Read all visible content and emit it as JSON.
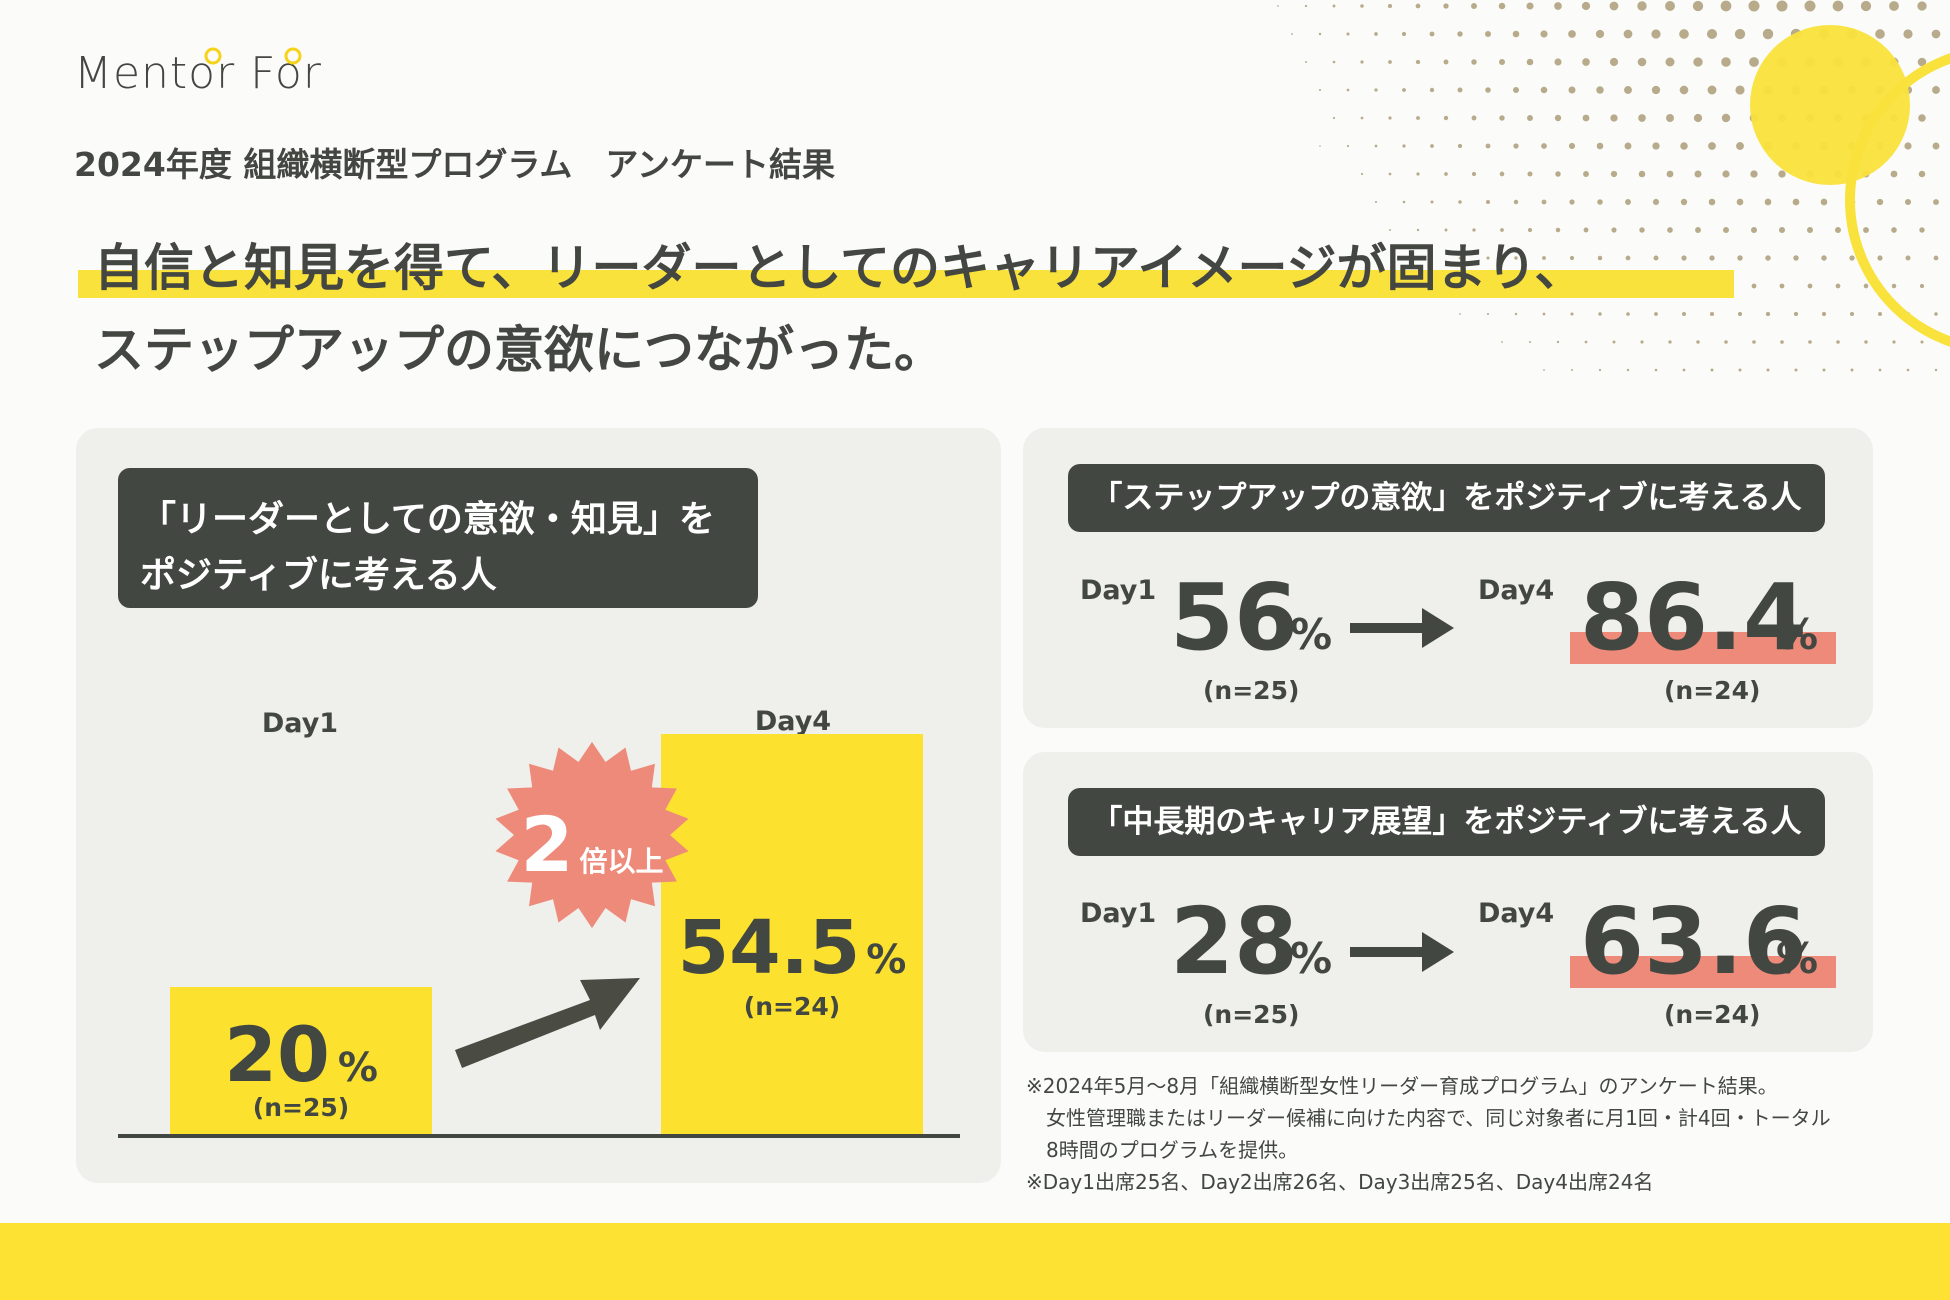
{
  "brand": {
    "logo": "Mentor For"
  },
  "subtitle": "2024年度 組織横断型プログラム　アンケート結果",
  "headline": {
    "line1": "自信と知見を得て、リーダーとしてのキャリアイメージが固まり、",
    "line2": "ステップアップの意欲につながった。"
  },
  "colors": {
    "accent_yellow": "#fce22f",
    "dark": "#434741",
    "highlight": "#ee8a7a",
    "card": "#efefeb"
  },
  "chart_data": [
    {
      "type": "bar",
      "title": "「リーダーとしての意欲・知見」を ポジティブに考える人",
      "title_lines": [
        "「リーダーとしての意欲・知見」を",
        "ポジティブに考える人"
      ],
      "categories": [
        "Day1",
        "Day4"
      ],
      "values": [
        20,
        54.5
      ],
      "value_labels": [
        "20",
        "54.5"
      ],
      "unit": "%",
      "n_labels": [
        "(n=25)",
        "(n=24)"
      ],
      "ylim": [
        0,
        60
      ],
      "badge": {
        "number": "2",
        "text": "倍以上"
      }
    },
    {
      "type": "table",
      "title": "「ステップアップの意欲」をポジティブに考える人",
      "from": {
        "label": "Day1",
        "value": "56",
        "unit": "%",
        "n": "(n=25)"
      },
      "to": {
        "label": "Day4",
        "value": "86.4",
        "unit": "%",
        "n": "(n=24)"
      }
    },
    {
      "type": "table",
      "title": "「中長期のキャリア展望」をポジティブに考える人",
      "from": {
        "label": "Day1",
        "value": "28",
        "unit": "%",
        "n": "(n=25)"
      },
      "to": {
        "label": "Day4",
        "value": "63.6",
        "unit": "%",
        "n": "(n=24)"
      }
    }
  ],
  "notes": [
    "※2024年5月〜8月「組織横断型女性リーダー育成プログラム」のアンケート結果。",
    "　女性管理職またはリーダー候補に向けた内容で、同じ対象者に月1回・計4回・トータル",
    "　8時間のプログラムを提供。",
    "※Day1出席25名、Day2出席26名、Day3出席25名、Day4出席24名"
  ]
}
